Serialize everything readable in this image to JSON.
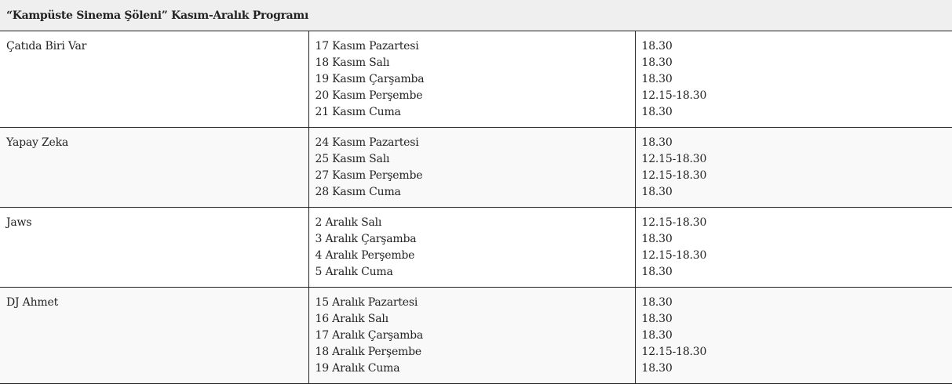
{
  "title": "“Kampüste Sinema Şöleni” Kasım-Aralık Programı",
  "rows": [
    {
      "film": "Çatıda Biri Var",
      "dates": [
        "17 Kasım Pazartesi",
        "18 Kasım Salı",
        "19 Kasım Çarşamba",
        "20 Kasım Perşembe",
        "21 Kasım Cuma"
      ],
      "times": [
        "18.30",
        "18.30",
        "18.30",
        "12.15-18.30",
        "18.30"
      ]
    },
    {
      "film": "Yapay Zeka",
      "dates": [
        "24 Kasım Pazartesi",
        "25 Kasım Salı",
        "27 Kasım Perşembe",
        "28 Kasım Cuma"
      ],
      "times": [
        "18.30",
        "12.15-18.30",
        "12.15-18.30",
        "18.30"
      ]
    },
    {
      "film": "Jaws",
      "dates": [
        "2 Aralık Salı",
        "3 Aralık Çarşamba",
        "4 Aralık Perşembe",
        "5 Aralık Cuma"
      ],
      "times": [
        "12.15-18.30",
        "18.30",
        "12.15-18.30",
        "18.30"
      ]
    },
    {
      "film": "DJ Ahmet",
      "dates": [
        "15 Aralık Pazartesi",
        "16 Aralık Salı",
        "17 Aralık Çarşamba",
        "18 Aralık Perşembe",
        "19 Aralık Cuma"
      ],
      "times": [
        "18.30",
        "18.30",
        "18.30",
        "12.15-18.30",
        "18.30"
      ]
    }
  ]
}
